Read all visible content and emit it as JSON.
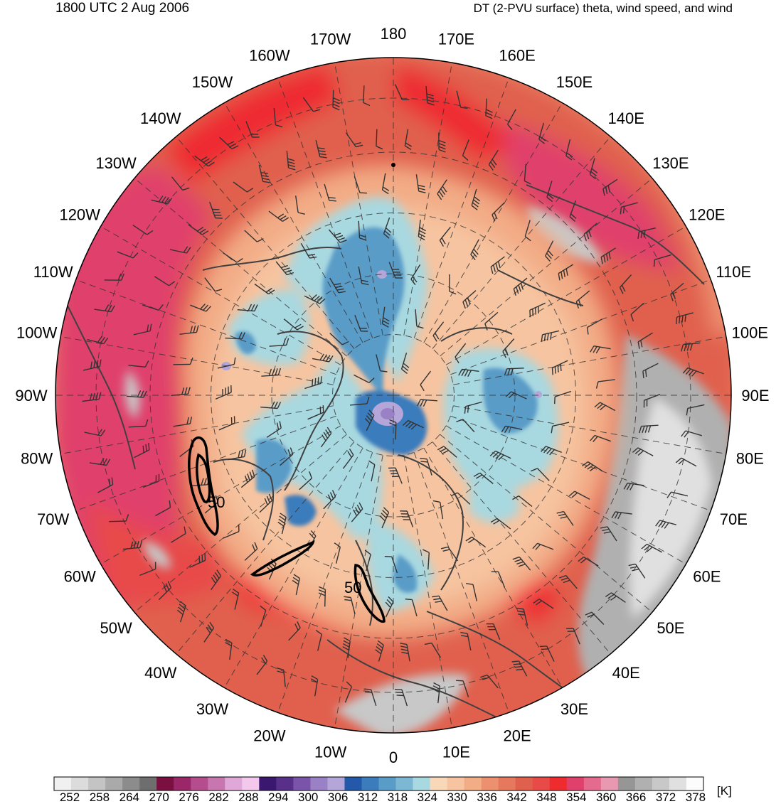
{
  "header": {
    "time_label": "1800 UTC 2 Aug 2006",
    "field_label": "DT (2-PVU surface) theta, wind speed, and wind"
  },
  "map": {
    "projection": "north-polar-stereographic",
    "longitude_labels": [
      "180",
      "170E",
      "160E",
      "150E",
      "140E",
      "130E",
      "120E",
      "110E",
      "100E",
      "90E",
      "80E",
      "70E",
      "60E",
      "50E",
      "40E",
      "30E",
      "20E",
      "10E",
      "0",
      "10W",
      "20W",
      "30W",
      "40W",
      "50W",
      "60W",
      "70W",
      "80W",
      "90W",
      "100W",
      "110W",
      "120W",
      "130W",
      "140W",
      "150W",
      "160W",
      "170W"
    ],
    "wind_speed_contour_labels": [
      "50",
      "50"
    ]
  },
  "colorbar": {
    "unit_label": "[K]",
    "tick_labels": [
      "252",
      "258",
      "264",
      "270",
      "276",
      "282",
      "288",
      "294",
      "300",
      "306",
      "312",
      "318",
      "324",
      "330",
      "336",
      "342",
      "348",
      "354",
      "360",
      "366",
      "372",
      "378"
    ],
    "colors": [
      "#f0f0f0",
      "#dcdcdc",
      "#c4c4c4",
      "#aaaaaa",
      "#8c8c8c",
      "#6e6e6e",
      "#7a1040",
      "#9a2868",
      "#b44c8e",
      "#c876b0",
      "#e0a8d8",
      "#f4c8ec",
      "#3a1870",
      "#58308a",
      "#7a54a8",
      "#9a80c4",
      "#b4a6d8",
      "#2458a8",
      "#3a7cbc",
      "#5a9cc8",
      "#7cb8d4",
      "#a8d8e0",
      "#f8d8b8",
      "#f6c4a0",
      "#f2ac86",
      "#ec9070",
      "#e6785e",
      "#e0604e",
      "#e84a48",
      "#ee2c30",
      "#e0406c",
      "#e46a8e",
      "#e898b0",
      "#969696",
      "#b0b0b0",
      "#c8c8c8",
      "#e0e0e0",
      "#fcfcfc"
    ]
  }
}
